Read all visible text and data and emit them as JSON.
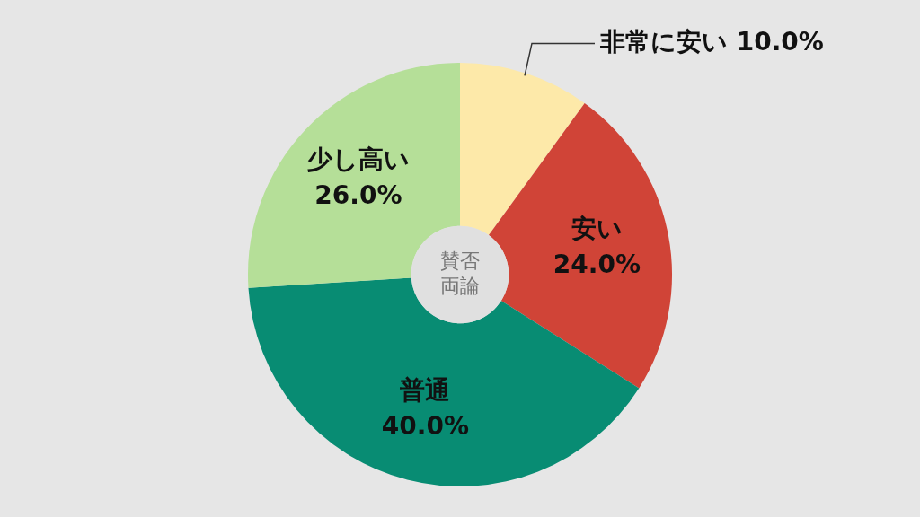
{
  "chart_data": {
    "type": "donut",
    "title": "賛否両論",
    "categories": [
      "非常に安い",
      "安い",
      "普通",
      "少し高い"
    ],
    "values": [
      10.0,
      24.0,
      40.0,
      26.0
    ],
    "value_labels": [
      "10.0%",
      "24.0%",
      "40.0%",
      "26.0%"
    ],
    "colors": [
      "#fde9a9",
      "#d04437",
      "#088c73",
      "#b5df98"
    ],
    "legend": false
  }
}
